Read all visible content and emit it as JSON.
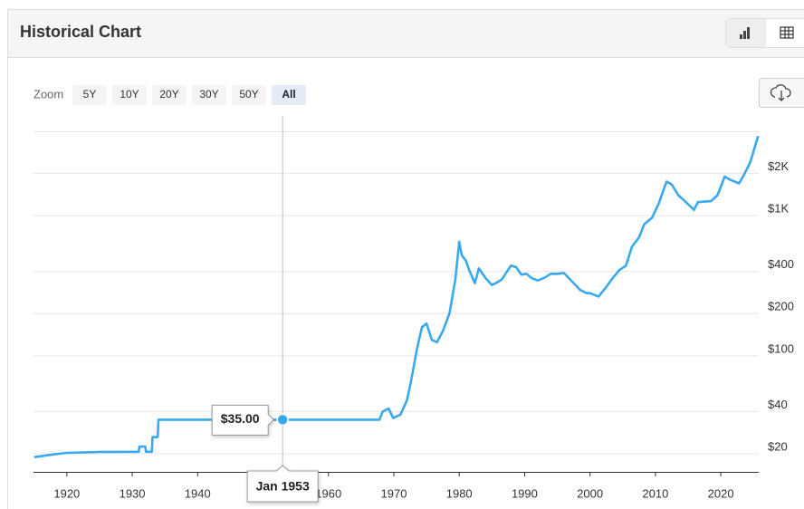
{
  "header": {
    "title": "Historical Chart"
  },
  "zoom": {
    "label": "Zoom",
    "options": [
      "5Y",
      "10Y",
      "20Y",
      "30Y",
      "50Y",
      "All"
    ],
    "active": 5
  },
  "chart_data": {
    "type": "line",
    "color": "#37a9ec",
    "log_scale": true,
    "grid": true,
    "x": [
      1915,
      1918,
      1920,
      1925,
      1931.0,
      1931.1,
      1932.0,
      1932.1,
      1933.0,
      1933.1,
      1933.9,
      1934.0,
      1945,
      1953,
      1967.8,
      1968.3,
      1969.2,
      1969.9,
      1971,
      1972,
      1972.6,
      1973.5,
      1974.3,
      1975.0,
      1975.8,
      1976.6,
      1977.5,
      1978.5,
      1979.4,
      1980.0,
      1980.4,
      1981.0,
      1981.6,
      1982.4,
      1983.0,
      1984.0,
      1985.0,
      1985.6,
      1986.5,
      1987.9,
      1988.7,
      1989.5,
      1990.3,
      1991.0,
      1992.0,
      1993.0,
      1994.0,
      1995.0,
      1996.0,
      1997.5,
      1998.5,
      1999.5,
      2000.0,
      2001.3,
      2002.5,
      2003.5,
      2004.5,
      2005.5,
      2006.4,
      2007.5,
      2008.3,
      2009.5,
      2010.5,
      2011.7,
      2012.5,
      2013.5,
      2014.5,
      2015.9,
      2016.5,
      2017.5,
      2018.5,
      2019.5,
      2020.6,
      2021.5,
      2022.8,
      2023.5,
      2024.5,
      2025.7
    ],
    "values": [
      18.9,
      19.8,
      20.3,
      20.6,
      20.67,
      22.5,
      22.5,
      20.67,
      20.67,
      26.3,
      26.3,
      35,
      35,
      35,
      35,
      40,
      42,
      36,
      38,
      48,
      65,
      110,
      160,
      170,
      130,
      125,
      150,
      200,
      350,
      650,
      520,
      480,
      400,
      330,
      420,
      360,
      320,
      330,
      350,
      440,
      430,
      380,
      385,
      360,
      345,
      360,
      385,
      385,
      390,
      330,
      295,
      280,
      280,
      265,
      310,
      360,
      410,
      440,
      600,
      700,
      870,
      970,
      1220,
      1750,
      1670,
      1400,
      1270,
      1100,
      1250,
      1260,
      1270,
      1400,
      1900,
      1800,
      1700,
      1940,
      2400,
      3700
    ],
    "xlim": [
      1914.9,
      2025.8
    ],
    "xticks": [
      1920,
      1930,
      1940,
      1950,
      1960,
      1970,
      1980,
      1990,
      2000,
      2010,
      2020
    ],
    "ylim": [
      14.85,
      4000
    ],
    "yticks": [
      {
        "value": 20,
        "label": "$20"
      },
      {
        "value": 40,
        "label": "$40"
      },
      {
        "value": 100,
        "label": "$100"
      },
      {
        "value": 200,
        "label": "$200"
      },
      {
        "value": 400,
        "label": "$400"
      },
      {
        "value": 1000,
        "label": "$1K"
      },
      {
        "value": 2000,
        "label": "$2K"
      }
    ],
    "tooltip": {
      "x": 1953,
      "x_label": "Jan 1953",
      "value": 35,
      "value_label": "$35.00"
    }
  }
}
